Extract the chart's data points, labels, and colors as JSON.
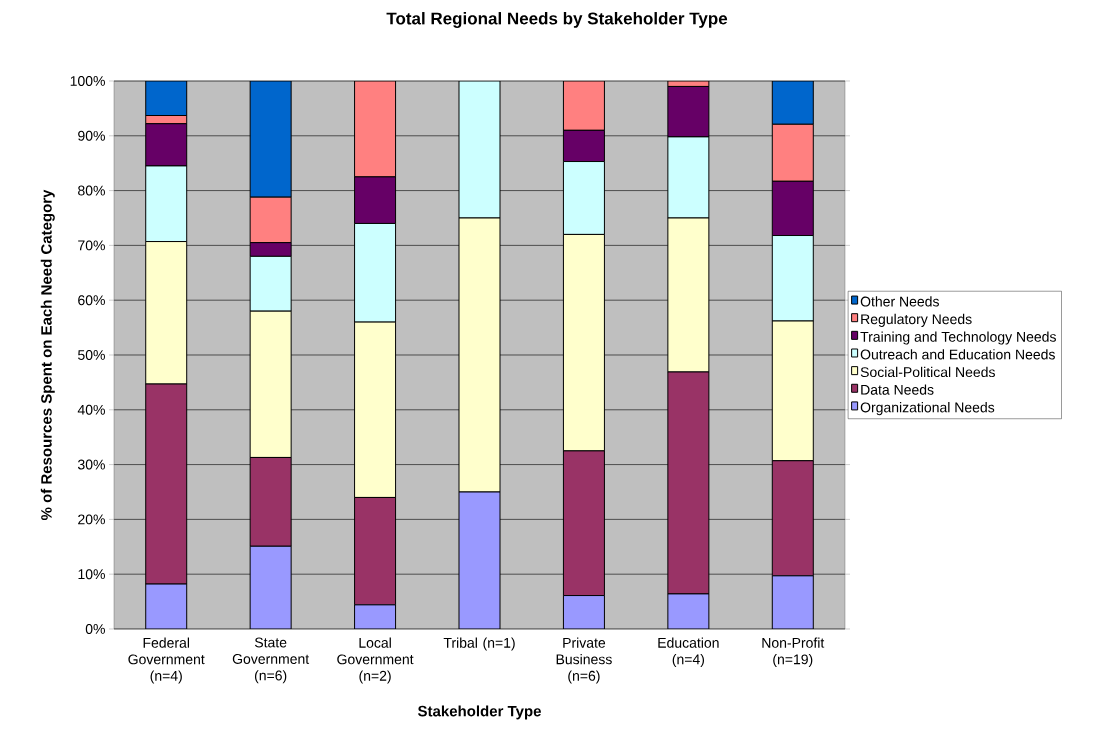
{
  "chart_data": {
    "type": "bar",
    "stacked": true,
    "title": "Total Regional Needs by Stakeholder Type",
    "xlabel": "Stakeholder Type",
    "ylabel": "% of Resources Spent on Each Need Category",
    "categories": [
      "Federal Government (n=4)",
      "State Government (n=6)",
      "Local Government (n=2)",
      "Tribal (n=1)",
      "Private Business (n=6)",
      "Education (n=4)",
      "Non-Profit (n=19)"
    ],
    "series": [
      {
        "name": "Organizational Needs",
        "color": "#9999ff",
        "values": [
          8.2,
          15.1,
          4.4,
          25,
          6.1,
          6.4,
          9.7
        ]
      },
      {
        "name": "Data Needs",
        "color": "#993366",
        "values": [
          36.5,
          16.2,
          19.6,
          0,
          26.4,
          40.5,
          21.0
        ]
      },
      {
        "name": "Social-Political Needs",
        "color": "#ffffcc",
        "values": [
          26.0,
          26.7,
          32.0,
          50,
          39.5,
          28.1,
          25.5
        ]
      },
      {
        "name": "Outreach and Education Needs",
        "color": "#ccffff",
        "values": [
          13.8,
          10.0,
          18.0,
          25,
          13.3,
          14.8,
          15.6
        ]
      },
      {
        "name": "Training and Technology Needs",
        "color": "#660066",
        "values": [
          7.7,
          2.5,
          8.5,
          0,
          5.7,
          9.2,
          9.9
        ]
      },
      {
        "name": "Regulatory Needs",
        "color": "#ff8080",
        "values": [
          1.5,
          8.3,
          17.5,
          0,
          9.0,
          1.0,
          10.4
        ]
      },
      {
        "name": "Other Needs",
        "color": "#0066cc",
        "values": [
          6.3,
          21.2,
          0,
          0,
          0,
          0,
          7.9
        ]
      }
    ],
    "ylim": [
      0,
      100
    ],
    "yticks": [
      {
        "value": 0,
        "label": "0%"
      },
      {
        "value": 10,
        "label": "10%"
      },
      {
        "value": 20,
        "label": "20%"
      },
      {
        "value": 30,
        "label": "30%"
      },
      {
        "value": 40,
        "label": "40%"
      },
      {
        "value": 50,
        "label": "50%"
      },
      {
        "value": 60,
        "label": "60%"
      },
      {
        "value": 70,
        "label": "70%"
      },
      {
        "value": 80,
        "label": "80%"
      },
      {
        "value": 90,
        "label": "90%"
      },
      {
        "value": 100,
        "label": "100%"
      }
    ],
    "grid": "y",
    "legend": "right"
  }
}
